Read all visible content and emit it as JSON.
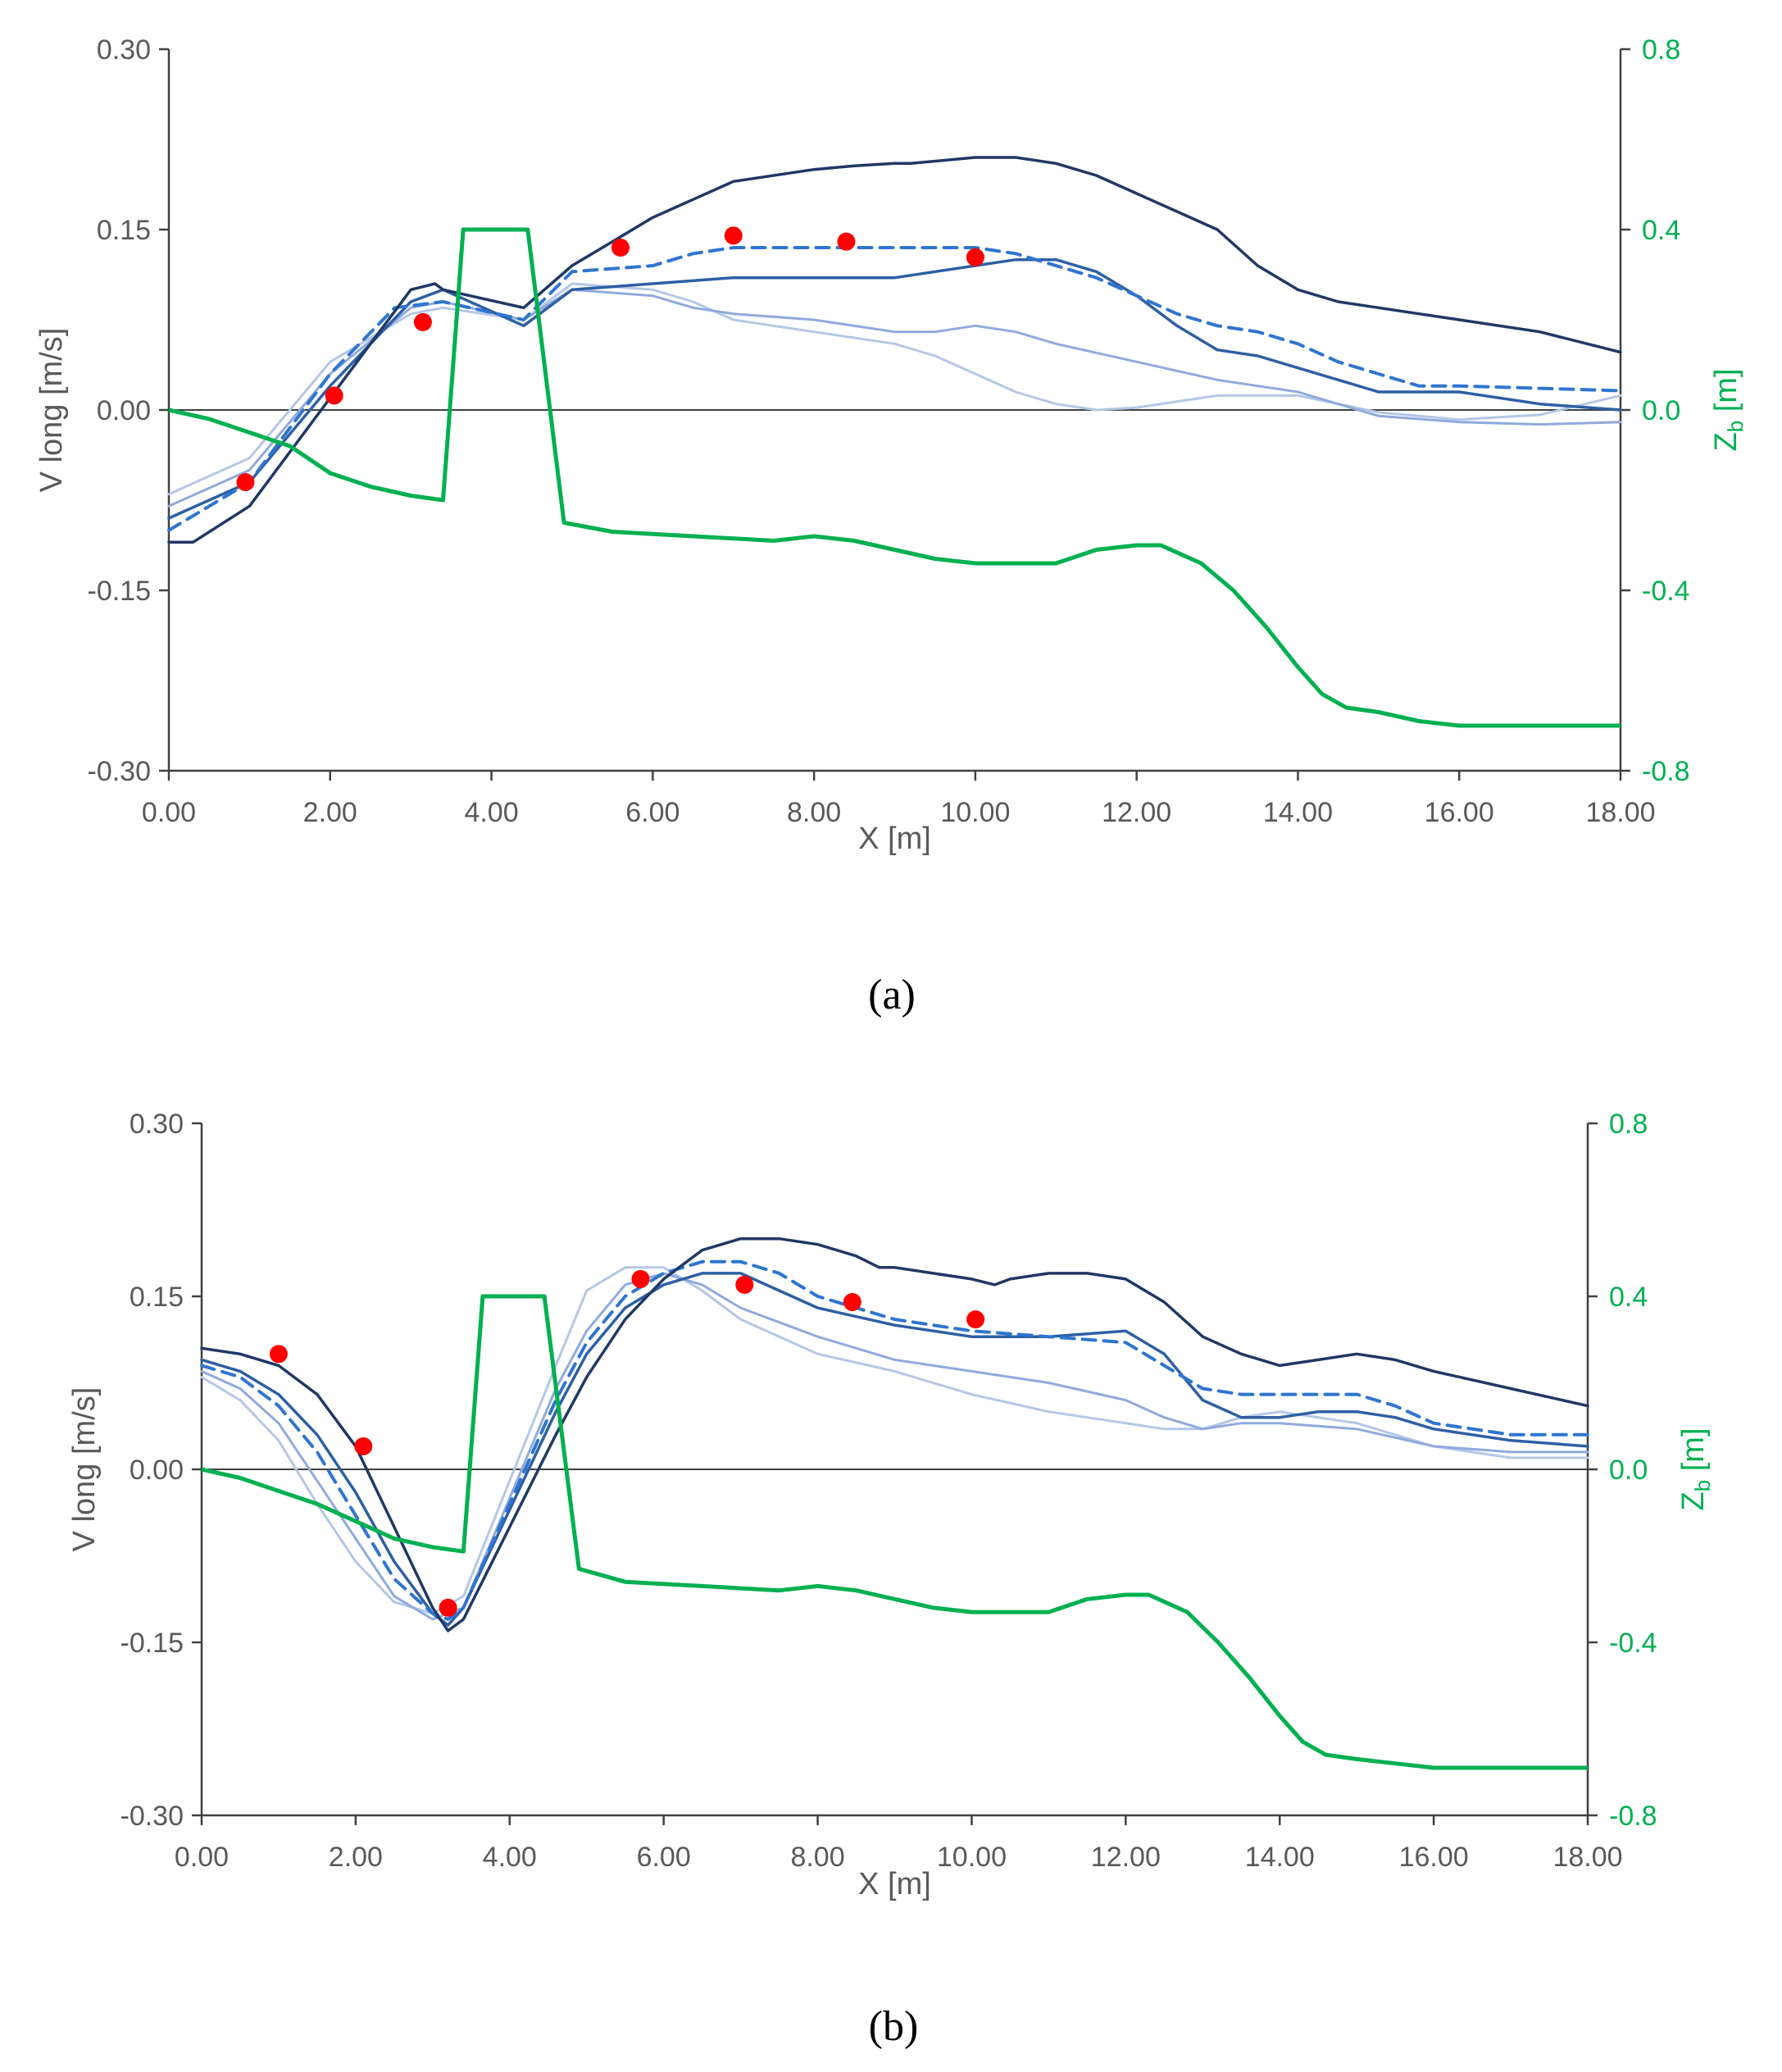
{
  "colors": {
    "axis": "#404040",
    "tick_text": "#595959",
    "bed": "#00B050",
    "measured": "#FF0000",
    "series_dark": "#1F3864",
    "series_mid": "#2E5FA3",
    "series_dashed": "#2F75D0",
    "series_light": "#8FAADC",
    "series_lighter": "#B4C7E7"
  },
  "chart_data": [
    {
      "type": "line",
      "panel_label": "(a)",
      "xlabel": "X [m]",
      "ylabel": "V long [m/s]",
      "y2label_main": "Z",
      "y2label_sub": "b",
      "y2label_unit": " [m]",
      "xlim": [
        0,
        18
      ],
      "ylim": [
        -0.3,
        0.3
      ],
      "y2lim": [
        -0.8,
        0.8
      ],
      "x_ticks": [
        "0.00",
        "2.00",
        "4.00",
        "6.00",
        "8.00",
        "10.00",
        "12.00",
        "14.00",
        "16.00",
        "18.00"
      ],
      "y_ticks": [
        "0.30",
        "0.15",
        "0.00",
        "-0.15",
        "-0.30"
      ],
      "y2_ticks": [
        "0.8",
        "0.4",
        "0.0",
        "-0.4",
        "-0.8"
      ],
      "grid": false,
      "bed_profile": {
        "x": [
          0,
          0.5,
          1.0,
          1.5,
          2.0,
          2.5,
          3.0,
          3.4,
          3.65,
          4.45,
          4.9,
          5.5,
          6.5,
          7.5,
          8.0,
          8.5,
          9.0,
          9.5,
          10.0,
          11.0,
          11.5,
          12.0,
          12.3,
          12.8,
          13.2,
          13.6,
          14.0,
          14.3,
          14.6,
          15.0,
          15.5,
          16.0,
          16.5,
          17.0,
          18.0
        ],
        "y": [
          0.0,
          -0.02,
          -0.05,
          -0.08,
          -0.14,
          -0.17,
          -0.19,
          -0.2,
          0.4,
          0.4,
          -0.25,
          -0.27,
          -0.28,
          -0.29,
          -0.28,
          -0.29,
          -0.31,
          -0.33,
          -0.34,
          -0.34,
          -0.31,
          -0.3,
          -0.3,
          -0.34,
          -0.4,
          -0.48,
          -0.57,
          -0.63,
          -0.66,
          -0.67,
          -0.69,
          -0.7,
          -0.7,
          -0.7,
          -0.7
        ]
      },
      "series": [
        {
          "style": "dark",
          "x": [
            0,
            0.3,
            1.0,
            2.0,
            3.0,
            3.3,
            3.4,
            4.4,
            5.0,
            5.5,
            6.0,
            6.5,
            7.0,
            8.0,
            8.5,
            9.0,
            9.2,
            10.0,
            10.5,
            11.0,
            11.5,
            12.0,
            12.5,
            13.0,
            13.5,
            14.0,
            14.5,
            15.0,
            15.5,
            16.0,
            17.0,
            18.0
          ],
          "y": [
            -0.11,
            -0.11,
            -0.08,
            0.01,
            0.1,
            0.105,
            0.1,
            0.085,
            0.12,
            0.14,
            0.16,
            0.175,
            0.19,
            0.2,
            0.203,
            0.205,
            0.205,
            0.21,
            0.21,
            0.205,
            0.195,
            0.18,
            0.165,
            0.15,
            0.12,
            0.1,
            0.09,
            0.085,
            0.08,
            0.075,
            0.065,
            0.048
          ]
        },
        {
          "style": "mid",
          "x": [
            0,
            1.0,
            2.0,
            3.0,
            3.4,
            4.4,
            5.0,
            6.0,
            7.0,
            8.0,
            9.0,
            10.0,
            10.5,
            11.0,
            11.5,
            12.0,
            12.5,
            13.0,
            13.5,
            14.0,
            14.5,
            15.0,
            16.0,
            17.0,
            18.0
          ],
          "y": [
            -0.09,
            -0.06,
            0.02,
            0.09,
            0.1,
            0.07,
            0.1,
            0.105,
            0.11,
            0.11,
            0.11,
            0.12,
            0.125,
            0.125,
            0.115,
            0.095,
            0.07,
            0.05,
            0.045,
            0.035,
            0.025,
            0.015,
            0.015,
            0.005,
            0.0
          ]
        },
        {
          "style": "dashed",
          "x": [
            0,
            1.0,
            2.0,
            2.8,
            3.4,
            4.4,
            5.0,
            6.0,
            6.5,
            7.0,
            8.0,
            9.0,
            10.0,
            10.5,
            11.0,
            11.5,
            12.0,
            12.5,
            13.0,
            13.5,
            14.0,
            14.5,
            15.0,
            15.5,
            16.0,
            17.0,
            18.0
          ],
          "y": [
            -0.1,
            -0.06,
            0.03,
            0.085,
            0.09,
            0.075,
            0.115,
            0.12,
            0.13,
            0.135,
            0.135,
            0.135,
            0.135,
            0.13,
            0.12,
            0.11,
            0.095,
            0.08,
            0.07,
            0.065,
            0.055,
            0.04,
            0.03,
            0.02,
            0.02,
            0.018,
            0.016
          ]
        },
        {
          "style": "light",
          "x": [
            0,
            1.0,
            2.0,
            3.0,
            3.4,
            4.4,
            5.0,
            6.0,
            6.5,
            7.0,
            8.0,
            9.0,
            9.5,
            10.0,
            10.5,
            11.0,
            12.0,
            13.0,
            14.0,
            14.5,
            15.0,
            16.0,
            17.0,
            18.0
          ],
          "y": [
            -0.08,
            -0.05,
            0.03,
            0.085,
            0.09,
            0.075,
            0.1,
            0.095,
            0.085,
            0.08,
            0.075,
            0.065,
            0.065,
            0.07,
            0.065,
            0.055,
            0.04,
            0.025,
            0.015,
            0.005,
            -0.005,
            -0.01,
            -0.012,
            -0.01
          ]
        },
        {
          "style": "lighter",
          "x": [
            0,
            1.0,
            2.0,
            3.0,
            3.4,
            4.4,
            5.0,
            6.0,
            6.5,
            7.0,
            8.0,
            9.0,
            9.5,
            10.0,
            10.5,
            11.0,
            11.5,
            12.0,
            13.0,
            14.0,
            15.0,
            16.0,
            17.0,
            18.0
          ],
          "y": [
            -0.07,
            -0.04,
            0.04,
            0.08,
            0.085,
            0.075,
            0.105,
            0.1,
            0.09,
            0.075,
            0.065,
            0.055,
            0.045,
            0.03,
            0.015,
            0.005,
            0.0,
            0.002,
            0.012,
            0.012,
            -0.002,
            -0.008,
            -0.004,
            0.012
          ]
        }
      ],
      "measured": {
        "x": [
          0.95,
          2.05,
          3.15,
          5.6,
          7.0,
          8.4,
          10.0
        ],
        "y": [
          -0.06,
          0.012,
          0.073,
          0.135,
          0.145,
          0.14,
          0.127
        ]
      }
    },
    {
      "type": "line",
      "panel_label": "(b)",
      "xlabel": "X [m]",
      "ylabel": "V long [m/s]",
      "y2label_main": "Z",
      "y2label_sub": "b",
      "y2label_unit": " [m]",
      "xlim": [
        0,
        18
      ],
      "ylim": [
        -0.3,
        0.3
      ],
      "y2lim": [
        -0.8,
        0.8
      ],
      "x_ticks": [
        "0.00",
        "2.00",
        "4.00",
        "6.00",
        "8.00",
        "10.00",
        "12.00",
        "14.00",
        "16.00",
        "18.00"
      ],
      "y_ticks": [
        "0.30",
        "0.15",
        "0.00",
        "-0.15",
        "-0.30"
      ],
      "y2_ticks": [
        "0.8",
        "0.4",
        "0.0",
        "-0.4",
        "-0.8"
      ],
      "grid": false,
      "bed_profile": {
        "x": [
          0,
          0.5,
          1.0,
          1.5,
          2.0,
          2.5,
          3.0,
          3.4,
          3.65,
          4.45,
          4.9,
          5.5,
          6.5,
          7.5,
          8.0,
          8.5,
          9.0,
          9.5,
          10.0,
          11.0,
          11.5,
          12.0,
          12.3,
          12.8,
          13.2,
          13.6,
          14.0,
          14.3,
          14.6,
          15.0,
          15.5,
          16.0,
          16.5,
          17.0,
          18.0
        ],
        "y": [
          0.0,
          -0.02,
          -0.05,
          -0.08,
          -0.12,
          -0.16,
          -0.18,
          -0.19,
          0.4,
          0.4,
          -0.23,
          -0.26,
          -0.27,
          -0.28,
          -0.27,
          -0.28,
          -0.3,
          -0.32,
          -0.33,
          -0.33,
          -0.3,
          -0.29,
          -0.29,
          -0.33,
          -0.4,
          -0.48,
          -0.57,
          -0.63,
          -0.66,
          -0.67,
          -0.68,
          -0.69,
          -0.69,
          -0.69,
          -0.69
        ]
      },
      "series": [
        {
          "style": "dark",
          "x": [
            0,
            0.5,
            1.0,
            1.5,
            2.0,
            2.5,
            3.0,
            3.2,
            3.4,
            4.6,
            5.0,
            5.5,
            6.0,
            6.5,
            7.0,
            7.5,
            8.0,
            8.5,
            8.8,
            9.0,
            9.5,
            10.0,
            10.3,
            10.5,
            11.0,
            11.5,
            12.0,
            12.5,
            13.0,
            13.5,
            14.0,
            14.5,
            15.0,
            15.5,
            16.0,
            17.0,
            18.0
          ],
          "y": [
            0.105,
            0.1,
            0.09,
            0.065,
            0.02,
            -0.05,
            -0.12,
            -0.14,
            -0.13,
            0.03,
            0.08,
            0.13,
            0.165,
            0.19,
            0.2,
            0.2,
            0.195,
            0.185,
            0.175,
            0.175,
            0.17,
            0.165,
            0.16,
            0.165,
            0.17,
            0.17,
            0.165,
            0.145,
            0.115,
            0.1,
            0.09,
            0.095,
            0.1,
            0.095,
            0.085,
            0.07,
            0.055
          ]
        },
        {
          "style": "mid",
          "x": [
            0,
            0.5,
            1.0,
            1.5,
            2.0,
            2.5,
            3.0,
            3.2,
            3.4,
            4.6,
            5.0,
            5.5,
            6.0,
            6.5,
            7.0,
            7.5,
            8.0,
            9.0,
            10.0,
            11.0,
            12.0,
            12.5,
            13.0,
            13.5,
            14.0,
            14.5,
            15.0,
            15.5,
            16.0,
            17.0,
            18.0
          ],
          "y": [
            0.095,
            0.085,
            0.065,
            0.03,
            -0.02,
            -0.08,
            -0.125,
            -0.135,
            -0.12,
            0.05,
            0.1,
            0.14,
            0.16,
            0.17,
            0.17,
            0.155,
            0.14,
            0.125,
            0.115,
            0.115,
            0.12,
            0.1,
            0.06,
            0.045,
            0.045,
            0.05,
            0.05,
            0.045,
            0.035,
            0.025,
            0.02
          ]
        },
        {
          "style": "dashed",
          "x": [
            0,
            0.5,
            1.0,
            1.5,
            2.0,
            2.5,
            3.0,
            3.2,
            3.4,
            4.6,
            5.0,
            5.5,
            6.0,
            6.5,
            7.0,
            7.5,
            8.0,
            9.0,
            10.0,
            11.0,
            12.0,
            12.5,
            13.0,
            13.5,
            14.0,
            14.5,
            15.0,
            15.5,
            16.0,
            17.0,
            18.0
          ],
          "y": [
            0.09,
            0.08,
            0.055,
            0.015,
            -0.04,
            -0.095,
            -0.125,
            -0.13,
            -0.12,
            0.06,
            0.11,
            0.15,
            0.17,
            0.18,
            0.18,
            0.17,
            0.15,
            0.13,
            0.12,
            0.115,
            0.11,
            0.09,
            0.07,
            0.065,
            0.065,
            0.065,
            0.065,
            0.055,
            0.04,
            0.03,
            0.03
          ]
        },
        {
          "style": "light",
          "x": [
            0,
            0.5,
            1.0,
            1.5,
            2.0,
            2.5,
            3.0,
            3.4,
            4.6,
            5.0,
            5.5,
            6.0,
            6.5,
            7.0,
            8.0,
            9.0,
            10.0,
            11.0,
            12.0,
            12.5,
            13.0,
            13.5,
            14.0,
            15.0,
            16.0,
            17.0,
            18.0
          ],
          "y": [
            0.085,
            0.07,
            0.04,
            -0.01,
            -0.06,
            -0.11,
            -0.13,
            -0.12,
            0.07,
            0.12,
            0.16,
            0.17,
            0.16,
            0.14,
            0.115,
            0.095,
            0.085,
            0.075,
            0.06,
            0.045,
            0.035,
            0.04,
            0.04,
            0.035,
            0.02,
            0.015,
            0.015
          ]
        },
        {
          "style": "lighter",
          "x": [
            0,
            0.5,
            1.0,
            1.5,
            2.0,
            2.5,
            3.0,
            3.4,
            4.6,
            5.0,
            5.5,
            6.0,
            6.5,
            7.0,
            8.0,
            9.0,
            10.0,
            11.0,
            12.0,
            12.5,
            13.0,
            13.5,
            14.0,
            15.0,
            16.0,
            17.0,
            18.0
          ],
          "y": [
            0.08,
            0.06,
            0.025,
            -0.03,
            -0.08,
            -0.115,
            -0.125,
            -0.11,
            0.09,
            0.155,
            0.175,
            0.175,
            0.155,
            0.13,
            0.1,
            0.085,
            0.065,
            0.05,
            0.04,
            0.035,
            0.035,
            0.045,
            0.05,
            0.04,
            0.02,
            0.01,
            0.01
          ]
        }
      ],
      "measured": {
        "x": [
          1.0,
          2.1,
          3.2,
          5.7,
          7.05,
          8.45,
          10.05
        ],
        "y": [
          0.1,
          0.02,
          -0.12,
          0.165,
          0.16,
          0.145,
          0.13
        ]
      }
    }
  ]
}
